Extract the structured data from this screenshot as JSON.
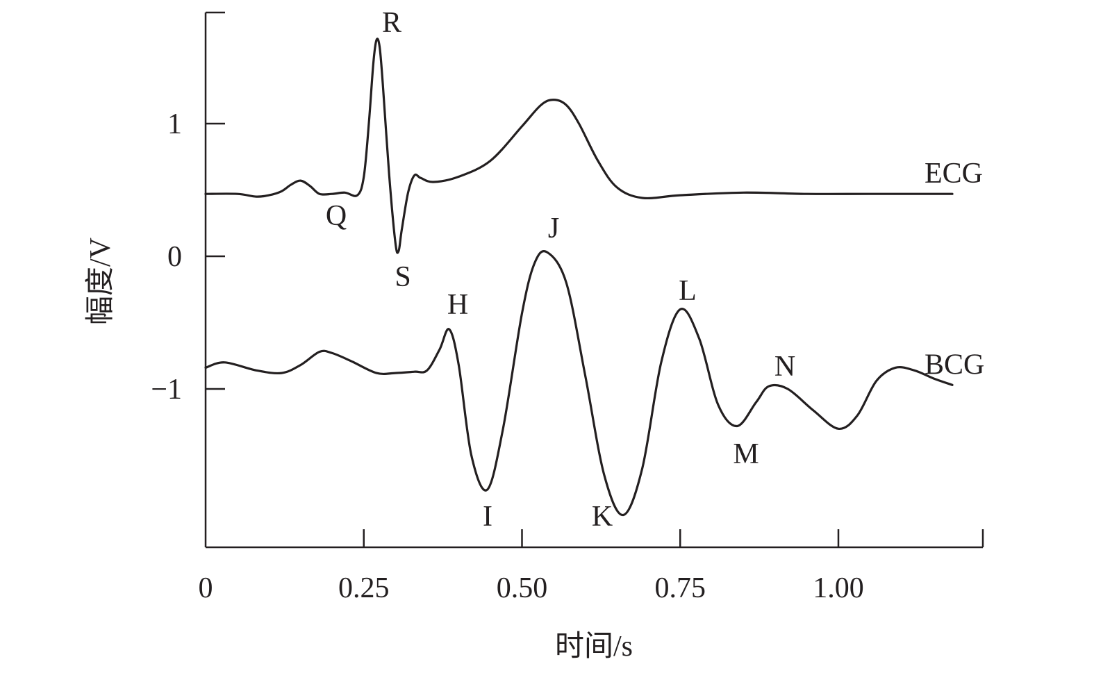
{
  "chart_data": {
    "type": "line",
    "xlabel": "时间/s",
    "ylabel": "幅度/V",
    "xlim": [
      0,
      1.22
    ],
    "ylim": [
      -2.2,
      1.85
    ],
    "x_ticks": [
      {
        "value": 0,
        "label": "0"
      },
      {
        "value": 0.25,
        "label": "0.25"
      },
      {
        "value": 0.5,
        "label": "0.50"
      },
      {
        "value": 0.75,
        "label": "0.75"
      },
      {
        "value": 1.0,
        "label": "1.00"
      }
    ],
    "y_ticks": [
      {
        "value": 1,
        "label": "1"
      },
      {
        "value": 0,
        "label": "0"
      },
      {
        "value": -1,
        "label": "−1"
      }
    ],
    "grid": false,
    "series": [
      {
        "name": "ECG",
        "x": [
          0,
          0.05,
          0.08,
          0.1,
          0.12,
          0.135,
          0.15,
          0.165,
          0.18,
          0.2,
          0.22,
          0.24,
          0.25,
          0.258,
          0.265,
          0.27,
          0.275,
          0.28,
          0.29,
          0.3,
          0.305,
          0.31,
          0.32,
          0.33,
          0.34,
          0.36,
          0.4,
          0.45,
          0.5,
          0.53,
          0.55,
          0.57,
          0.59,
          0.62,
          0.65,
          0.69,
          0.75,
          0.85,
          0.95,
          1.05,
          1.18
        ],
        "y": [
          0.47,
          0.47,
          0.45,
          0.46,
          0.49,
          0.54,
          0.57,
          0.53,
          0.47,
          0.47,
          0.48,
          0.46,
          0.6,
          1.0,
          1.45,
          1.63,
          1.58,
          1.3,
          0.62,
          0.1,
          0.04,
          0.2,
          0.48,
          0.61,
          0.59,
          0.56,
          0.6,
          0.72,
          0.98,
          1.14,
          1.18,
          1.14,
          1.0,
          0.72,
          0.52,
          0.44,
          0.46,
          0.48,
          0.47,
          0.47,
          0.47
        ]
      },
      {
        "name": "BCG",
        "x": [
          0,
          0.03,
          0.08,
          0.12,
          0.15,
          0.18,
          0.2,
          0.23,
          0.27,
          0.3,
          0.33,
          0.35,
          0.37,
          0.385,
          0.4,
          0.42,
          0.445,
          0.47,
          0.5,
          0.52,
          0.54,
          0.57,
          0.6,
          0.63,
          0.66,
          0.69,
          0.72,
          0.75,
          0.78,
          0.81,
          0.84,
          0.87,
          0.89,
          0.92,
          0.96,
          1.0,
          1.03,
          1.06,
          1.09,
          1.12,
          1.15,
          1.18
        ],
        "y": [
          -0.84,
          -0.8,
          -0.86,
          -0.88,
          -0.82,
          -0.72,
          -0.73,
          -0.79,
          -0.88,
          -0.88,
          -0.87,
          -0.86,
          -0.7,
          -0.55,
          -0.82,
          -1.5,
          -1.76,
          -1.3,
          -0.43,
          -0.05,
          0.03,
          -0.2,
          -0.9,
          -1.65,
          -1.95,
          -1.6,
          -0.8,
          -0.4,
          -0.62,
          -1.12,
          -1.28,
          -1.1,
          -0.98,
          -1.0,
          -1.16,
          -1.3,
          -1.2,
          -0.94,
          -0.84,
          -0.86,
          -0.92,
          -0.97
        ]
      }
    ],
    "peak_labels": [
      {
        "text": "R"
      },
      {
        "text": "Q"
      },
      {
        "text": "S"
      },
      {
        "text": "J"
      },
      {
        "text": "H"
      },
      {
        "text": "L"
      },
      {
        "text": "I"
      },
      {
        "text": "K"
      },
      {
        "text": "N"
      },
      {
        "text": "M"
      }
    ]
  }
}
